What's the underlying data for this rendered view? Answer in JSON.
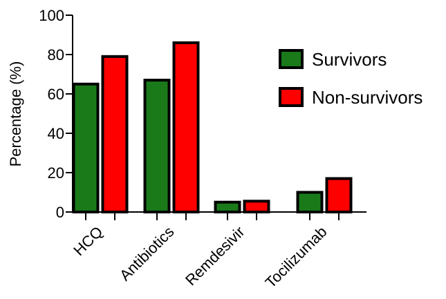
{
  "chart_data": {
    "type": "bar",
    "categories": [
      "HCQ",
      "Antibiotics",
      "Remdesivir",
      "Tocilizumab"
    ],
    "series": [
      {
        "name": "Survivors",
        "values": [
          65,
          67,
          5,
          10
        ],
        "color": "#1a7a1a"
      },
      {
        "name": "Non-survivors",
        "values": [
          79,
          86,
          5.5,
          17
        ],
        "color": "#ff0000"
      }
    ],
    "ylabel": "Percentage (%)",
    "xlabel": "",
    "ylim": [
      0,
      100
    ],
    "yticks": [
      0,
      20,
      40,
      60,
      80,
      100
    ],
    "grid": false,
    "legend_position": "top-right"
  }
}
